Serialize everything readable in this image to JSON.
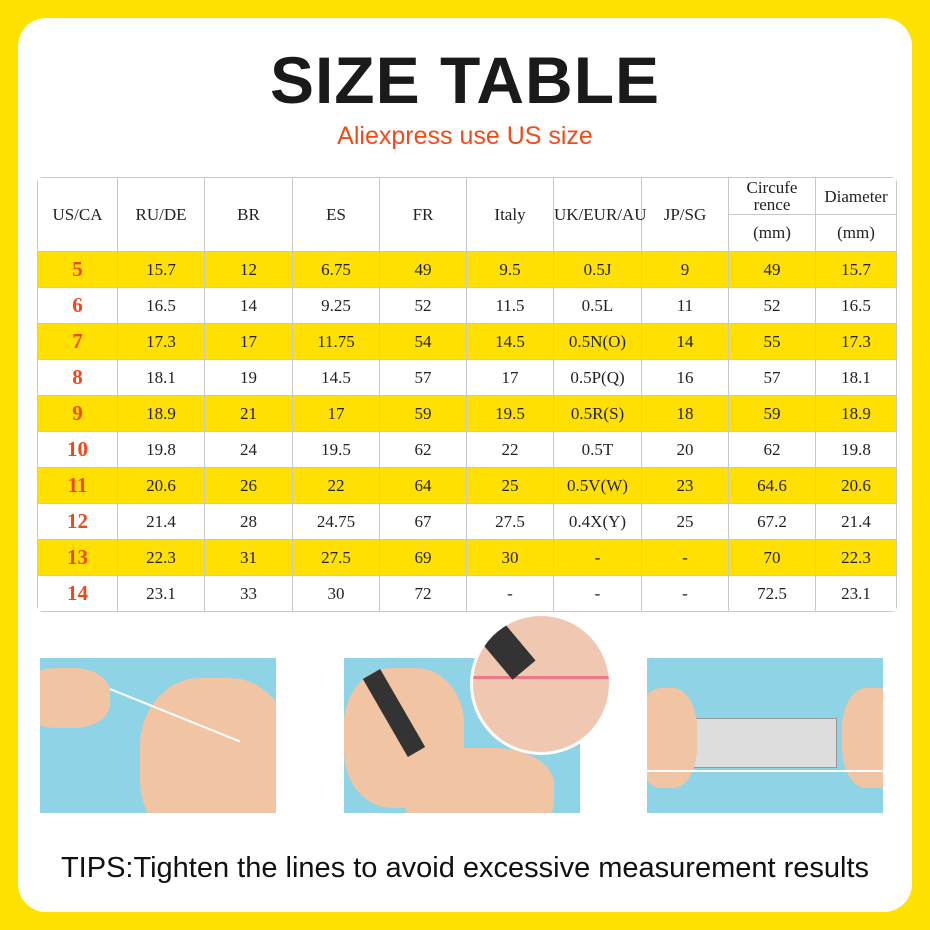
{
  "title": "SIZE TABLE",
  "subtitle": "Aliexpress use US size",
  "table": {
    "headers": [
      "US/CA",
      "RU/DE",
      "BR",
      "ES",
      "FR",
      "Italy",
      "UK/EUR/AU",
      "JP/SG",
      "Circufe rence",
      "Diameter"
    ],
    "units": [
      "(mm)",
      "(mm)"
    ],
    "rows": [
      [
        "5",
        "15.7",
        "12",
        "6.75",
        "49",
        "9.5",
        "0.5J",
        "9",
        "49",
        "15.7"
      ],
      [
        "6",
        "16.5",
        "14",
        "9.25",
        "52",
        "11.5",
        "0.5L",
        "11",
        "52",
        "16.5"
      ],
      [
        "7",
        "17.3",
        "17",
        "11.75",
        "54",
        "14.5",
        "0.5N(O)",
        "14",
        "55",
        "17.3"
      ],
      [
        "8",
        "18.1",
        "19",
        "14.5",
        "57",
        "17",
        "0.5P(Q)",
        "16",
        "57",
        "18.1"
      ],
      [
        "9",
        "18.9",
        "21",
        "17",
        "59",
        "19.5",
        "0.5R(S)",
        "18",
        "59",
        "18.9"
      ],
      [
        "10",
        "19.8",
        "24",
        "19.5",
        "62",
        "22",
        "0.5T",
        "20",
        "62",
        "19.8"
      ],
      [
        "11",
        "20.6",
        "26",
        "22",
        "64",
        "25",
        "0.5V(W)",
        "23",
        "64.6",
        "20.6"
      ],
      [
        "12",
        "21.4",
        "28",
        "24.75",
        "67",
        "27.5",
        "0.4X(Y)",
        "25",
        "67.2",
        "21.4"
      ],
      [
        "13",
        "22.3",
        "31",
        "27.5",
        "69",
        "30",
        "-",
        "-",
        "70",
        "22.3"
      ],
      [
        "14",
        "23.1",
        "33",
        "30",
        "72",
        "-",
        "-",
        "-",
        "72.5",
        "23.1"
      ]
    ]
  },
  "tips": "TIPS:Tighten the lines to avoid excessive measurement results",
  "colors": {
    "accent": "#FFE000",
    "size_red": "#f2461a"
  }
}
